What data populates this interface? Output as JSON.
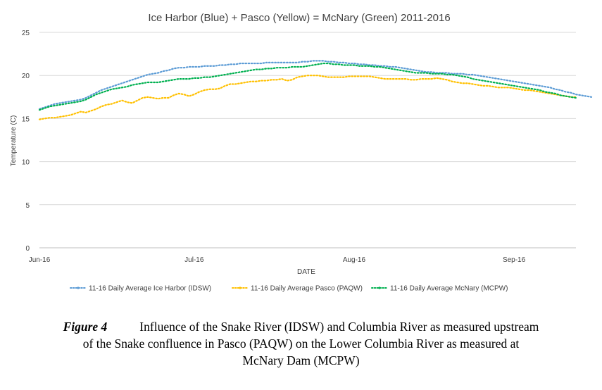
{
  "chart_data": {
    "type": "line",
    "title": "Ice Harbor (Blue) + Pasco (Yellow) = McNary (Green) 2011-2016",
    "xlabel": "DATE",
    "ylabel": "Temperature (C)",
    "ylim": [
      0,
      25
    ],
    "y_ticks": [
      "0",
      "5",
      "10",
      "15",
      "20",
      "25"
    ],
    "x_ticks": [
      {
        "label": "Jun-16",
        "day": 0
      },
      {
        "label": "Jul-16",
        "day": 30
      },
      {
        "label": "Aug-16",
        "day": 61
      },
      {
        "label": "Sep-16",
        "day": 92
      }
    ],
    "grid": true,
    "legend_position": "bottom",
    "series": [
      {
        "name": "11-16 Daily Average Ice Harbor (IDSW)",
        "color": "#5B9BD5",
        "values": [
          16.1,
          16.3,
          16.5,
          16.7,
          16.8,
          16.9,
          17.0,
          17.1,
          17.2,
          17.4,
          17.7,
          18.0,
          18.3,
          18.5,
          18.7,
          18.9,
          19.1,
          19.3,
          19.5,
          19.7,
          19.9,
          20.1,
          20.2,
          20.3,
          20.5,
          20.6,
          20.8,
          20.9,
          20.9,
          21.0,
          21.0,
          21.0,
          21.1,
          21.1,
          21.1,
          21.2,
          21.2,
          21.3,
          21.3,
          21.4,
          21.4,
          21.4,
          21.4,
          21.4,
          21.5,
          21.5,
          21.5,
          21.5,
          21.5,
          21.5,
          21.5,
          21.6,
          21.6,
          21.7,
          21.7,
          21.7,
          21.6,
          21.6,
          21.5,
          21.5,
          21.4,
          21.4,
          21.3,
          21.3,
          21.2,
          21.2,
          21.1,
          21.1,
          21.0,
          21.0,
          20.9,
          20.8,
          20.7,
          20.6,
          20.5,
          20.4,
          20.4,
          20.3,
          20.3,
          20.3,
          20.2,
          20.2,
          20.2,
          20.1,
          20.1,
          20.0,
          19.9,
          19.8,
          19.7,
          19.6,
          19.5,
          19.4,
          19.3,
          19.2,
          19.1,
          19.0,
          18.9,
          18.8,
          18.7,
          18.6,
          18.4,
          18.3,
          18.1,
          18.0,
          17.8,
          17.7,
          17.6,
          17.5
        ]
      },
      {
        "name": "11-16 Daily Average Pasco (PAQW)",
        "color": "#FFC000",
        "values": [
          14.9,
          15.0,
          15.1,
          15.1,
          15.2,
          15.3,
          15.4,
          15.6,
          15.8,
          15.7,
          15.9,
          16.1,
          16.4,
          16.6,
          16.7,
          16.9,
          17.1,
          16.9,
          16.8,
          17.1,
          17.4,
          17.5,
          17.4,
          17.3,
          17.4,
          17.4,
          17.7,
          17.9,
          17.8,
          17.6,
          17.8,
          18.1,
          18.3,
          18.4,
          18.4,
          18.5,
          18.8,
          19.0,
          19.0,
          19.1,
          19.2,
          19.3,
          19.3,
          19.4,
          19.4,
          19.5,
          19.5,
          19.6,
          19.4,
          19.5,
          19.8,
          19.9,
          20.0,
          20.0,
          20.0,
          19.9,
          19.8,
          19.8,
          19.8,
          19.8,
          19.9,
          19.9,
          19.9,
          19.9,
          19.9,
          19.8,
          19.7,
          19.6,
          19.6,
          19.6,
          19.6,
          19.6,
          19.5,
          19.5,
          19.6,
          19.6,
          19.6,
          19.7,
          19.6,
          19.5,
          19.3,
          19.2,
          19.1,
          19.1,
          19.0,
          18.9,
          18.8,
          18.8,
          18.7,
          18.6,
          18.6,
          18.6,
          18.5,
          18.4,
          18.3,
          18.3,
          18.2,
          18.1,
          18.0,
          17.9,
          17.8,
          17.7,
          17.6,
          17.5,
          17.5
        ]
      },
      {
        "name": "11-16 Daily Average McNary (MCPW)",
        "color": "#00B050",
        "values": [
          16.0,
          16.2,
          16.4,
          16.5,
          16.6,
          16.7,
          16.8,
          16.9,
          17.0,
          17.2,
          17.5,
          17.8,
          18.0,
          18.2,
          18.4,
          18.5,
          18.6,
          18.7,
          18.9,
          19.0,
          19.1,
          19.2,
          19.2,
          19.2,
          19.3,
          19.4,
          19.5,
          19.6,
          19.6,
          19.6,
          19.7,
          19.7,
          19.8,
          19.8,
          19.9,
          20.0,
          20.1,
          20.2,
          20.3,
          20.4,
          20.5,
          20.6,
          20.7,
          20.7,
          20.8,
          20.8,
          20.9,
          20.9,
          20.9,
          21.0,
          21.0,
          21.0,
          21.1,
          21.2,
          21.3,
          21.4,
          21.4,
          21.3,
          21.3,
          21.2,
          21.2,
          21.2,
          21.1,
          21.1,
          21.1,
          21.0,
          21.0,
          20.9,
          20.8,
          20.7,
          20.6,
          20.5,
          20.4,
          20.3,
          20.3,
          20.3,
          20.2,
          20.2,
          20.2,
          20.1,
          20.1,
          20.0,
          19.9,
          19.8,
          19.6,
          19.5,
          19.4,
          19.3,
          19.2,
          19.1,
          19.0,
          18.9,
          18.8,
          18.7,
          18.6,
          18.5,
          18.4,
          18.3,
          18.1,
          18.0,
          17.9,
          17.7,
          17.6,
          17.5,
          17.4
        ]
      }
    ]
  },
  "caption": {
    "label": "Figure 4",
    "line1": "Influence of the Snake River (IDSW) and Columbia River as measured upstream",
    "line2": "of the Snake confluence in Pasco (PAQW) on the Lower Columbia River as measured at",
    "line3": "McNary Dam (MCPW)"
  }
}
